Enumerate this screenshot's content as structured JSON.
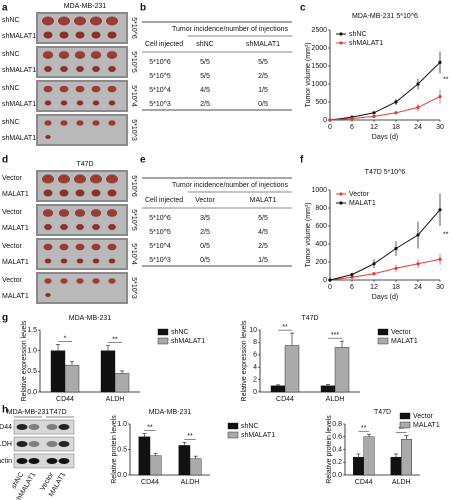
{
  "panel_letters": [
    "a",
    "b",
    "c",
    "d",
    "e",
    "f",
    "g",
    "h"
  ],
  "photos_a": {
    "title": "MDA-MB-231",
    "strips": [
      {
        "labels": [
          "shNC",
          "shMALAT1"
        ],
        "dose": "5*10^6"
      },
      {
        "labels": [
          "shNC",
          "shMALAT1"
        ],
        "dose": "5*10^5"
      },
      {
        "labels": [
          "shNC",
          "shMALAT1"
        ],
        "dose": "5*10^4"
      },
      {
        "labels": [
          "shNC",
          "shMALAT1"
        ],
        "dose": "5*10^3"
      }
    ]
  },
  "photos_d": {
    "title": "T47D",
    "strips": [
      {
        "labels": [
          "Vector",
          "MALAT1"
        ],
        "dose": "5*10^6"
      },
      {
        "labels": [
          "Vector",
          "MALAT1"
        ],
        "dose": "5*10^5"
      },
      {
        "labels": [
          "Vector",
          "MALAT1"
        ],
        "dose": "5*10^4"
      },
      {
        "labels": [
          "Vector",
          "MALAT1"
        ],
        "dose": "5*10^3"
      }
    ]
  },
  "table_b": {
    "header": {
      "cell": "Cell injected",
      "incidence": "Tumor incidence/number of injections",
      "groups": [
        "shNC",
        "shMALAT1"
      ]
    },
    "rows": [
      [
        "5*10^6",
        "5/5",
        "5/5"
      ],
      [
        "5*10^5",
        "5/5",
        "2/5"
      ],
      [
        "5*10^4",
        "4/5",
        "1/5"
      ],
      [
        "5*10^3",
        "2/5",
        "0/5"
      ]
    ]
  },
  "table_e": {
    "header": {
      "cell": "Cell injected",
      "incidence": "Tumor incidence/number of injections",
      "groups": [
        "Vector",
        "MALAT1"
      ]
    },
    "rows": [
      [
        "5*10^6",
        "3/5",
        "5/5"
      ],
      [
        "5*10^5",
        "2/5",
        "4/5"
      ],
      [
        "5*10^4",
        "0/5",
        "2/5"
      ],
      [
        "5*10^3",
        "0/5",
        "1/5"
      ]
    ]
  },
  "blot": {
    "cells": [
      "MDA-MB-231",
      "T47D"
    ],
    "proteins": [
      "CD44",
      "ALDH",
      "β-actin"
    ],
    "lanes": [
      "shNC",
      "shMALAT1",
      "Vector",
      "MALAT1"
    ]
  },
  "chart_data": [
    {
      "type": "line",
      "title": "MDA-MB-231   5*10^6",
      "x_label": "Days (d)",
      "y_label": "Tumor volume (mm³)",
      "x": [
        0,
        6,
        12,
        18,
        24,
        30
      ],
      "xlim": [
        0,
        30
      ],
      "xticks": [
        0,
        6,
        12,
        18,
        24,
        30
      ],
      "ylim": [
        0,
        2500
      ],
      "yticks": [
        0,
        500,
        1000,
        1500,
        2000,
        2500
      ],
      "legend": "upper left",
      "annotations": [
        "**"
      ],
      "series": [
        {
          "name": "shNC",
          "color": "#111111",
          "values": [
            0,
            80,
            200,
            500,
            1000,
            1600
          ],
          "errors": [
            0,
            20,
            40,
            80,
            150,
            300
          ]
        },
        {
          "name": "shMALAT1",
          "color": "#e53935",
          "values": [
            0,
            40,
            100,
            200,
            350,
            650
          ],
          "errors": [
            0,
            10,
            20,
            50,
            100,
            200
          ]
        }
      ]
    },
    {
      "type": "line",
      "title": "T47D   5*10^6",
      "x_label": "Days (d)",
      "y_label": "Tumor volume (mm³)",
      "x": [
        0,
        6,
        12,
        18,
        24,
        30
      ],
      "xlim": [
        0,
        30
      ],
      "xticks": [
        0,
        6,
        12,
        18,
        24,
        30
      ],
      "ylim": [
        0,
        1000
      ],
      "yticks": [
        0,
        200,
        400,
        600,
        800,
        1000
      ],
      "legend": "upper left",
      "annotations": [
        "**"
      ],
      "series": [
        {
          "name": "Vector",
          "color": "#e53935",
          "values": [
            0,
            30,
            70,
            130,
            180,
            230
          ],
          "errors": [
            0,
            10,
            20,
            40,
            50,
            60
          ]
        },
        {
          "name": "MALAT1",
          "color": "#111111",
          "values": [
            0,
            60,
            180,
            350,
            500,
            780
          ],
          "errors": [
            0,
            20,
            50,
            80,
            150,
            180
          ]
        }
      ]
    },
    {
      "type": "bar",
      "title": "MDA-MB-231",
      "y_label": "Relative expression levels",
      "categories": [
        "CD44",
        "ALDH"
      ],
      "ylim": [
        0,
        1.5
      ],
      "yticks": [
        {
          "value": 0,
          "label": "0.0"
        },
        0.5,
        {
          "value": 1,
          "label": "1.0"
        },
        1.5
      ],
      "legend": "right",
      "annotations": [
        "*",
        "**"
      ],
      "series": [
        {
          "name": "shNC",
          "color": "#111111",
          "values": [
            1.0,
            1.0
          ],
          "errors": [
            0.15,
            0.12
          ]
        },
        {
          "name": "shMALAT1",
          "color": "#aaaaaa",
          "values": [
            0.65,
            0.45
          ],
          "errors": [
            0.08,
            0.06
          ]
        }
      ]
    },
    {
      "type": "bar",
      "title": "T47D",
      "y_label": "Relative expression levels",
      "categories": [
        "CD44",
        "ALDH"
      ],
      "ylim": [
        0,
        10
      ],
      "yticks": [
        0,
        2,
        4,
        6,
        8,
        10
      ],
      "legend": "right",
      "annotations": [
        "**",
        "***"
      ],
      "series": [
        {
          "name": "Vector",
          "color": "#111111",
          "values": [
            1,
            1
          ],
          "errors": [
            0.15,
            0.2
          ]
        },
        {
          "name": "MALAT1",
          "color": "#aaaaaa",
          "values": [
            7.5,
            7.2
          ],
          "errors": [
            2,
            1
          ]
        }
      ]
    },
    {
      "type": "bar",
      "title": "MDA-MB-231",
      "y_label": "Relative protein levels",
      "categories": [
        "CD44",
        "ALDH"
      ],
      "ylim": [
        0,
        1
      ],
      "yticks": [
        {
          "value": 0,
          "label": "0.0"
        },
        0.5,
        {
          "value": 1,
          "label": "1.0"
        }
      ],
      "legend": "right",
      "annotations": [
        "**",
        "**"
      ],
      "series": [
        {
          "name": "shNC",
          "color": "#111111",
          "values": [
            0.75,
            0.58
          ],
          "errors": [
            0.06,
            0.06
          ]
        },
        {
          "name": "shMALAT1",
          "color": "#aaaaaa",
          "values": [
            0.38,
            0.32
          ],
          "errors": [
            0.04,
            0.05
          ]
        }
      ]
    },
    {
      "type": "bar",
      "title": "T47D",
      "y_label": "Relative protein levels",
      "categories": [
        "CD44",
        "ALDH"
      ],
      "ylim": [
        0,
        0.8
      ],
      "yticks": [
        {
          "value": 0,
          "label": "0.0"
        },
        0.2,
        0.4,
        0.6,
        0.8
      ],
      "legend": "upper right",
      "annotations": [
        "**",
        "**"
      ],
      "series": [
        {
          "name": "Vector",
          "color": "#111111",
          "values": [
            0.28,
            0.28
          ],
          "errors": [
            0.05,
            0.05
          ]
        },
        {
          "name": "MALAT1",
          "color": "#aaaaaa",
          "values": [
            0.6,
            0.56
          ],
          "errors": [
            0.04,
            0.06
          ]
        }
      ]
    }
  ]
}
